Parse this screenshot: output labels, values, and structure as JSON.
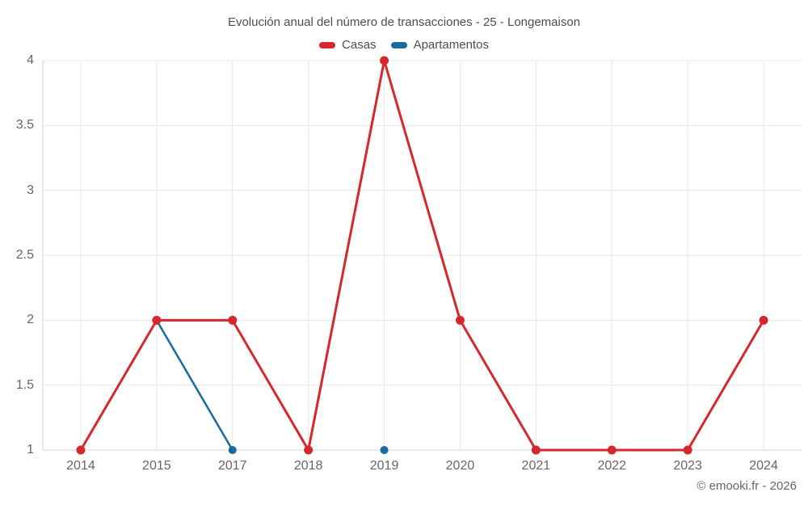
{
  "title": "Evolución anual del número de transacciones - 25 - Longemaison",
  "footer": "© emooki.fr - 2026",
  "chart_data": {
    "type": "line",
    "title": "Evolución anual del número de transacciones - 25 - Longemaison",
    "categories": [
      "2014",
      "2015",
      "2017",
      "2018",
      "2019",
      "2020",
      "2021",
      "2022",
      "2023",
      "2024"
    ],
    "series": [
      {
        "name": "Casas",
        "color": "#d5282c",
        "values": [
          1,
          2,
          2,
          1,
          4,
          2,
          1,
          1,
          1,
          2
        ]
      },
      {
        "name": "Apartamentos",
        "color": "#176ba0",
        "values": [
          null,
          2,
          1,
          null,
          1,
          null,
          null,
          null,
          null,
          null
        ]
      }
    ],
    "yticks": [
      1,
      1.5,
      2,
      2.5,
      3,
      3.5,
      4
    ],
    "ylim": [
      1,
      4
    ],
    "xlabel": "",
    "ylabel": "",
    "grid": true,
    "legend_position": "top"
  }
}
